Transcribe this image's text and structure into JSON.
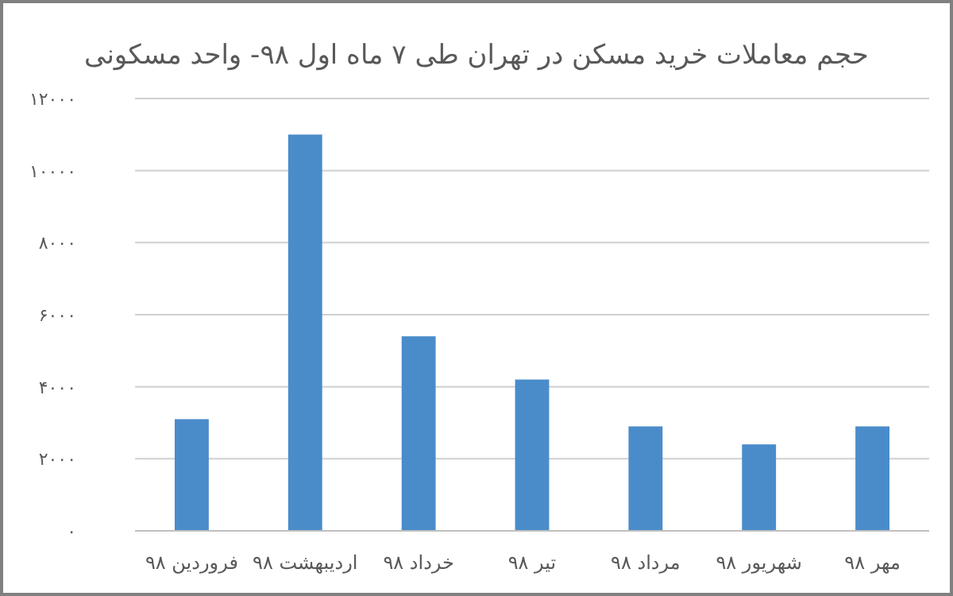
{
  "chart_data": {
    "type": "bar",
    "title": "حجم معاملات خرید مسکن در تهران طی ۷ ماه اول ۹۸- واحد مسکونی",
    "categories": [
      "فروردین ۹۸",
      "اردیبهشت ۹۸",
      "خرداد ۹۸",
      "تیر ۹۸",
      "مرداد ۹۸",
      "شهریور ۹۸",
      "مهر ۹۸"
    ],
    "values": [
      3100,
      11000,
      5400,
      4200,
      2900,
      2400,
      2900
    ],
    "color": "#4a8cca",
    "ylim": [
      0,
      12000
    ],
    "yticks": [
      {
        "value": 0,
        "label": "۰"
      },
      {
        "value": 2000,
        "label": "۲۰۰۰"
      },
      {
        "value": 4000,
        "label": "۴۰۰۰"
      },
      {
        "value": 6000,
        "label": "۶۰۰۰"
      },
      {
        "value": 8000,
        "label": "۸۰۰۰"
      },
      {
        "value": 10000,
        "label": "۱۰۰۰۰"
      },
      {
        "value": 12000,
        "label": "۱۲۰۰۰"
      }
    ],
    "grid": "y"
  }
}
